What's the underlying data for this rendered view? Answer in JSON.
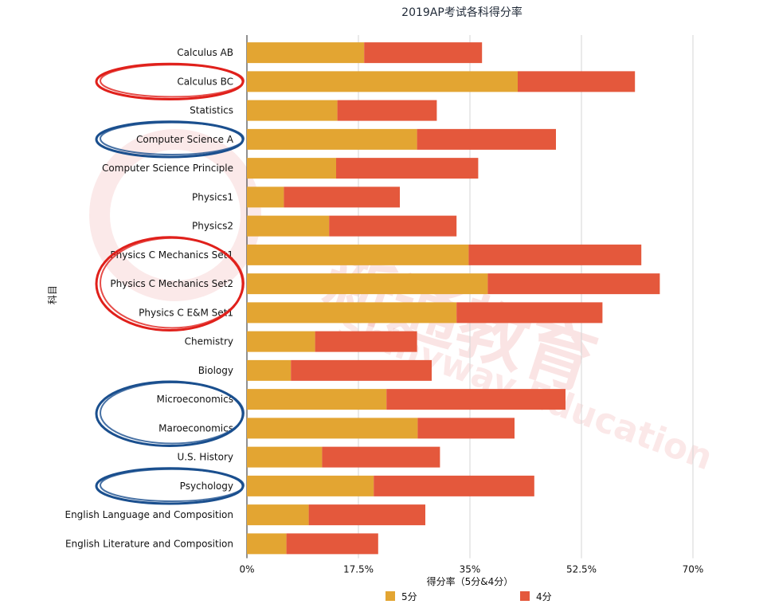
{
  "chart_data": {
    "type": "bar",
    "stacked": true,
    "orientation": "horizontal",
    "title": "2019AP考试各科得分率",
    "xlabel": "得分率（5分&4分）",
    "ylabel": "科目",
    "xlim": [
      0,
      70
    ],
    "xticks": [
      "0%",
      "17.5%",
      "35%",
      "52.5%",
      "70%"
    ],
    "grid": true,
    "legend": "bottom",
    "categories": [
      "Calculus AB",
      "Calculus BC",
      "Statistics",
      "Computer Science A",
      "Computer Science Principle",
      "Physics1",
      "Physics2",
      "Physics C Mechanics Set1",
      "Physics C Mechanics Set2",
      "Physics C E&M Set1",
      "Chemistry",
      "Biology",
      "Microeconomics",
      "Maroeconomics",
      "U.S. History",
      "Psychology",
      "English Language and Composition",
      "English Literature and Composition"
    ],
    "series": [
      {
        "name": "5分",
        "color": "#E3A532",
        "values": [
          18.4,
          42.5,
          14.2,
          26.7,
          14.0,
          5.8,
          12.9,
          34.8,
          37.8,
          32.9,
          10.7,
          6.9,
          21.9,
          26.8,
          11.8,
          19.9,
          9.7,
          6.2
        ]
      },
      {
        "name": "4分",
        "color": "#E4583C",
        "values": [
          18.5,
          18.4,
          15.6,
          21.8,
          22.3,
          18.2,
          20.0,
          27.1,
          27.0,
          22.9,
          16.0,
          22.1,
          28.1,
          15.2,
          18.5,
          25.2,
          18.3,
          14.4
        ]
      }
    ]
  },
  "watermark": {
    "text_cn": "新通教育",
    "text_en": "Shinyway Education",
    "color": "#E24B4B"
  },
  "highlight_groups": [
    {
      "color": "#E0201B",
      "rows": [
        1,
        1
      ]
    },
    {
      "color": "#1A4F8E",
      "rows": [
        3,
        3
      ]
    },
    {
      "color": "#E0201B",
      "rows": [
        7,
        9
      ]
    },
    {
      "color": "#1A4F8E",
      "rows": [
        12,
        13
      ]
    },
    {
      "color": "#1A4F8E",
      "rows": [
        15,
        15
      ]
    }
  ]
}
